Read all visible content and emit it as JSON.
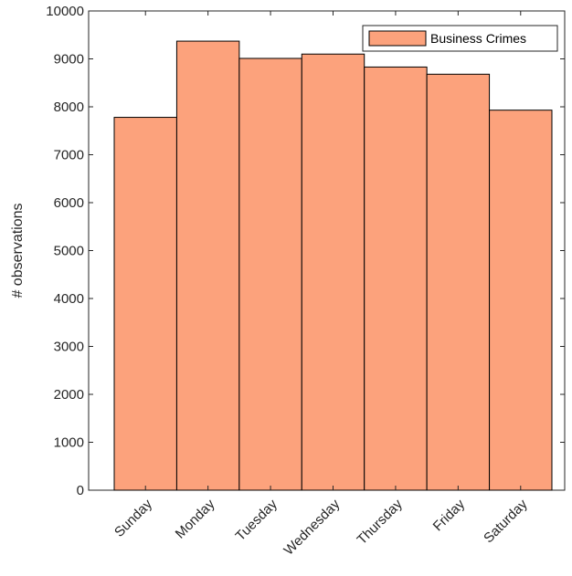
{
  "chart_data": {
    "type": "bar",
    "title": "",
    "xlabel": "",
    "ylabel": "# observations",
    "categories": [
      "Sunday",
      "Monday",
      "Tuesday",
      "Wednesday",
      "Thursday",
      "Friday",
      "Saturday"
    ],
    "series": [
      {
        "name": "Business Crimes",
        "values": [
          7780,
          9370,
          9010,
          9100,
          8830,
          8680,
          7930
        ],
        "color": "#FCA27C"
      }
    ],
    "ylim": [
      0,
      10000
    ],
    "yticks": [
      0,
      1000,
      2000,
      3000,
      4000,
      5000,
      6000,
      7000,
      8000,
      9000,
      10000
    ],
    "grid": false,
    "legend_position": "top-right"
  }
}
